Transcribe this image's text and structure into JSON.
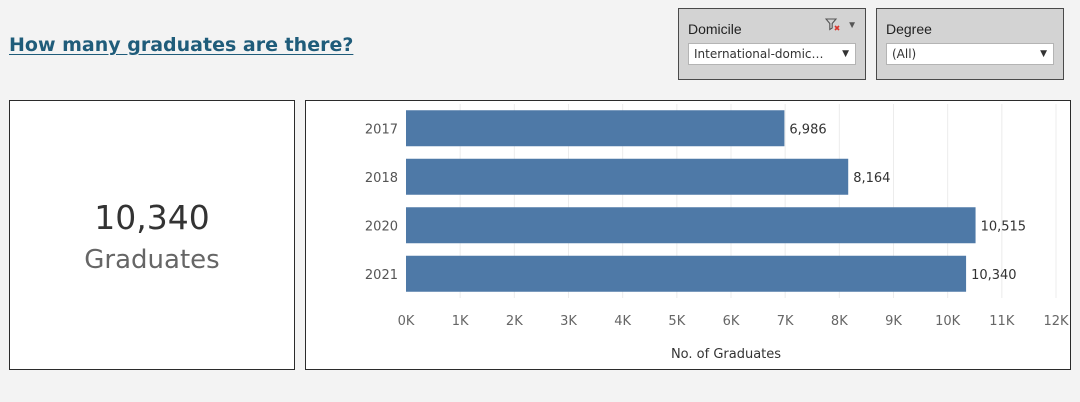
{
  "title": "How many graduates are there?",
  "filters": [
    {
      "label": "Domicile",
      "selected": "International-domic…",
      "has_clear": true
    },
    {
      "label": "Degree",
      "selected": "(All)",
      "has_clear": false
    }
  ],
  "kpi": {
    "value": "10,340",
    "unit": "Graduates"
  },
  "colors": {
    "bar": "#4e79a7",
    "title": "#1f5c7a"
  },
  "chart_data": {
    "type": "bar",
    "orientation": "horizontal",
    "categories": [
      "2017",
      "2018",
      "2020",
      "2021"
    ],
    "values": [
      6986,
      8164,
      10515,
      10340
    ],
    "value_labels": [
      "6,986",
      "8,164",
      "10,515",
      "10,340"
    ],
    "xlabel": "No. of Graduates",
    "xlim": [
      0,
      12000
    ],
    "x_ticks": [
      0,
      1000,
      2000,
      3000,
      4000,
      5000,
      6000,
      7000,
      8000,
      9000,
      10000,
      11000,
      12000
    ],
    "x_tick_labels": [
      "0K",
      "1K",
      "2K",
      "3K",
      "4K",
      "5K",
      "6K",
      "7K",
      "8K",
      "9K",
      "10K",
      "11K",
      "12K"
    ],
    "grid": true
  }
}
